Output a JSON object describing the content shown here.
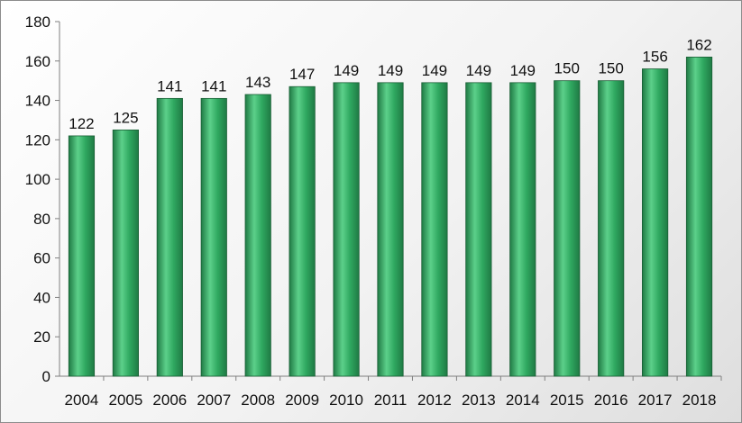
{
  "chart_data": {
    "type": "bar",
    "title": "",
    "xlabel": "",
    "ylabel": "",
    "categories": [
      "2004",
      "2005",
      "2006",
      "2007",
      "2008",
      "2009",
      "2010",
      "2011",
      "2012",
      "2013",
      "2014",
      "2015",
      "2016",
      "2017",
      "2018"
    ],
    "values": [
      122,
      125,
      141,
      141,
      143,
      147,
      149,
      149,
      149,
      149,
      149,
      150,
      150,
      156,
      162
    ],
    "ylim": [
      0,
      180
    ],
    "yticks": [
      0,
      20,
      40,
      60,
      80,
      100,
      120,
      140,
      160,
      180
    ],
    "grid": false,
    "legend": "none",
    "data_labels": true,
    "colors": {
      "bar_light": "#5cd08a",
      "bar_mid": "#2fa860",
      "bar_dark": "#1f7a44",
      "bar_edge": "#1a5e35"
    }
  }
}
